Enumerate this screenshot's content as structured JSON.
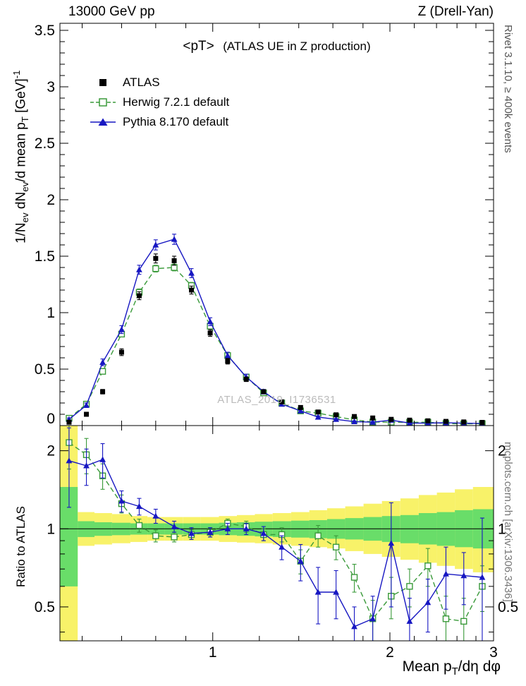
{
  "header": {
    "left": "13000 GeV pp",
    "right": "Z (Drell-Yan)"
  },
  "titles": {
    "main": "<pT>",
    "sub": "(ATLAS UE in Z production)",
    "watermark": "ATLAS_2019_I1736531",
    "rivet": "Rivet 3.1.10, ≥ 400k events",
    "mcplots": "mcplots.cern.ch [arXiv:1306.3436]",
    "ratio_ylabel": "Ratio to ATLAS",
    "ylabel": {
      "p0": "1/N",
      "p1": "ev",
      "p2": " dN",
      "p3": "ev",
      "p4": "/d mean p",
      "p5": "T",
      "p6": " [GeV]",
      "p7": "-1"
    },
    "xlabel": {
      "p0": "Mean p",
      "p1": "T",
      "p2": "/dη dφ"
    }
  },
  "chart_data": {
    "type": "line",
    "panels": [
      "spectrum",
      "ratio"
    ],
    "x_axis": {
      "label": "Mean p_T/dη dφ",
      "scale": "log",
      "min": 0.55,
      "max": 3.0,
      "ticks": [
        {
          "v": 1,
          "label": "1"
        },
        {
          "v": 2,
          "label": "2"
        },
        {
          "v": 3,
          "label": "3"
        }
      ],
      "minor": [
        0.6,
        0.7,
        0.8,
        0.9,
        1.2,
        1.4,
        1.6,
        1.8,
        2.2,
        2.4,
        2.6,
        2.8
      ]
    },
    "y_axis_main": {
      "label": "1/N_ev dN_ev/d mean p_T [GeV]^-1",
      "scale": "linear",
      "min": 0,
      "max": 3.5625,
      "minor_step": 0.1,
      "ticks": [
        {
          "v": 0,
          "label": "0"
        },
        {
          "v": 0.5,
          "label": "0.5"
        },
        {
          "v": 1,
          "label": "1"
        },
        {
          "v": 1.5,
          "label": "1.5"
        },
        {
          "v": 2,
          "label": "2"
        },
        {
          "v": 2.5,
          "label": "2.5"
        },
        {
          "v": 3,
          "label": "3"
        },
        {
          "v": 3.5,
          "label": "3.5"
        }
      ]
    },
    "y_axis_ratio": {
      "label": "Ratio to ATLAS",
      "scale": "log",
      "min": 0.37,
      "max": 2.5,
      "ticks": [
        {
          "v": 0.5,
          "label": "0.5"
        },
        {
          "v": 1,
          "label": "1"
        },
        {
          "v": 2,
          "label": "2"
        }
      ],
      "minor": [
        0.4,
        0.6,
        0.7,
        0.8,
        0.9
      ]
    },
    "x": [
      0.57,
      0.61,
      0.65,
      0.7,
      0.75,
      0.8,
      0.86,
      0.92,
      0.99,
      1.06,
      1.14,
      1.22,
      1.31,
      1.41,
      1.51,
      1.62,
      1.74,
      1.87,
      2.01,
      2.16,
      2.32,
      2.49,
      2.67,
      2.87
    ],
    "series": [
      {
        "name": "ATLAS",
        "color": "#000000",
        "line": "none",
        "marker": "square-filled",
        "values": [
          0.03,
          0.1,
          0.3,
          0.65,
          1.15,
          1.48,
          1.46,
          1.2,
          0.82,
          0.57,
          0.41,
          0.3,
          0.21,
          0.16,
          0.12,
          0.095,
          0.08,
          0.067,
          0.055,
          0.048,
          0.042,
          0.037,
          0.032,
          0.028
        ],
        "errors": [
          0.01,
          0.015,
          0.02,
          0.03,
          0.035,
          0.04,
          0.04,
          0.035,
          0.03,
          0.025,
          0.02,
          0.015,
          0.012,
          0.01,
          0.008,
          0.007,
          0.006,
          0.005,
          0.005,
          0.004,
          0.004,
          0.004,
          0.003,
          0.003
        ]
      },
      {
        "name": "Herwig 7.2.1 default",
        "color": "#3a9a3a",
        "line": "dashed",
        "marker": "square-open",
        "values": [
          0.065,
          0.19,
          0.48,
          0.81,
          1.18,
          1.39,
          1.4,
          1.24,
          0.88,
          0.62,
          0.43,
          0.29,
          0.2,
          0.13,
          0.11,
          0.08,
          0.05,
          0.032,
          0.03,
          0.029,
          0.03,
          0.018,
          0.015,
          0.017
        ],
        "errors": [
          0.01,
          0.015,
          0.02,
          0.025,
          0.03,
          0.03,
          0.03,
          0.028,
          0.025,
          0.02,
          0.018,
          0.015,
          0.012,
          0.01,
          0.01,
          0.008,
          0.007,
          0.005,
          0.005,
          0.005,
          0.006,
          0.004,
          0.004,
          0.005
        ],
        "ratio": [
          2.15,
          1.93,
          1.6,
          1.25,
          1.03,
          0.94,
          0.93,
          0.95,
          0.97,
          1.05,
          1.02,
          0.95,
          0.95,
          0.75,
          0.94,
          0.85,
          0.65,
          0.45,
          0.55,
          0.6,
          0.72,
          0.45,
          0.44,
          0.6
        ],
        "ratio_errors": [
          0.45,
          0.3,
          0.18,
          0.1,
          0.06,
          0.05,
          0.04,
          0.04,
          0.04,
          0.04,
          0.05,
          0.05,
          0.06,
          0.08,
          0.09,
          0.09,
          0.08,
          0.08,
          0.1,
          0.1,
          0.12,
          0.1,
          0.1,
          0.12
        ]
      },
      {
        "name": "Pythia 8.170 default",
        "color": "#1717c2",
        "line": "solid",
        "marker": "triangle-filled",
        "values": [
          0.055,
          0.18,
          0.56,
          0.85,
          1.38,
          1.6,
          1.65,
          1.35,
          0.92,
          0.62,
          0.43,
          0.3,
          0.19,
          0.13,
          0.075,
          0.055,
          0.035,
          0.03,
          0.048,
          0.022,
          0.022,
          0.025,
          0.021,
          0.018
        ],
        "errors": [
          0.012,
          0.02,
          0.03,
          0.035,
          0.04,
          0.045,
          0.045,
          0.04,
          0.035,
          0.03,
          0.025,
          0.02,
          0.015,
          0.012,
          0.01,
          0.008,
          0.007,
          0.006,
          0.008,
          0.005,
          0.005,
          0.006,
          0.006,
          0.01
        ],
        "ratio": [
          1.83,
          1.75,
          1.85,
          1.28,
          1.22,
          1.12,
          1.02,
          0.96,
          0.97,
          1.0,
          1.0,
          0.96,
          0.85,
          0.75,
          0.57,
          0.57,
          0.42,
          0.45,
          0.88,
          0.44,
          0.52,
          0.67,
          0.66,
          0.65
        ],
        "ratio_errors": [
          0.62,
          0.28,
          0.28,
          0.12,
          0.09,
          0.07,
          0.05,
          0.05,
          0.04,
          0.05,
          0.05,
          0.06,
          0.09,
          0.12,
          0.14,
          0.12,
          0.08,
          0.1,
          0.38,
          0.1,
          0.12,
          0.18,
          0.15,
          0.45
        ]
      }
    ],
    "bands": {
      "yellow": {
        "color": "#f8f269",
        "lo": [
          0.37,
          0.86,
          0.87,
          0.88,
          0.89,
          0.9,
          0.9,
          0.9,
          0.9,
          0.89,
          0.885,
          0.88,
          0.87,
          0.86,
          0.85,
          0.84,
          0.82,
          0.8,
          0.78,
          0.76,
          0.74,
          0.72,
          0.7,
          0.68
        ],
        "hi": [
          2.5,
          1.16,
          1.15,
          1.14,
          1.12,
          1.11,
          1.11,
          1.11,
          1.11,
          1.12,
          1.13,
          1.14,
          1.15,
          1.16,
          1.18,
          1.2,
          1.22,
          1.25,
          1.28,
          1.31,
          1.35,
          1.38,
          1.42,
          1.45
        ]
      },
      "green": {
        "color": "#69dd69",
        "lo": [
          0.6,
          0.93,
          0.94,
          0.945,
          0.95,
          0.95,
          0.95,
          0.95,
          0.95,
          0.945,
          0.94,
          0.935,
          0.93,
          0.925,
          0.92,
          0.915,
          0.91,
          0.9,
          0.89,
          0.88,
          0.87,
          0.86,
          0.85,
          0.84
        ],
        "hi": [
          1.45,
          1.07,
          1.06,
          1.055,
          1.05,
          1.05,
          1.05,
          1.05,
          1.05,
          1.055,
          1.06,
          1.065,
          1.07,
          1.075,
          1.08,
          1.09,
          1.1,
          1.11,
          1.12,
          1.13,
          1.15,
          1.16,
          1.18,
          1.19
        ]
      }
    }
  }
}
